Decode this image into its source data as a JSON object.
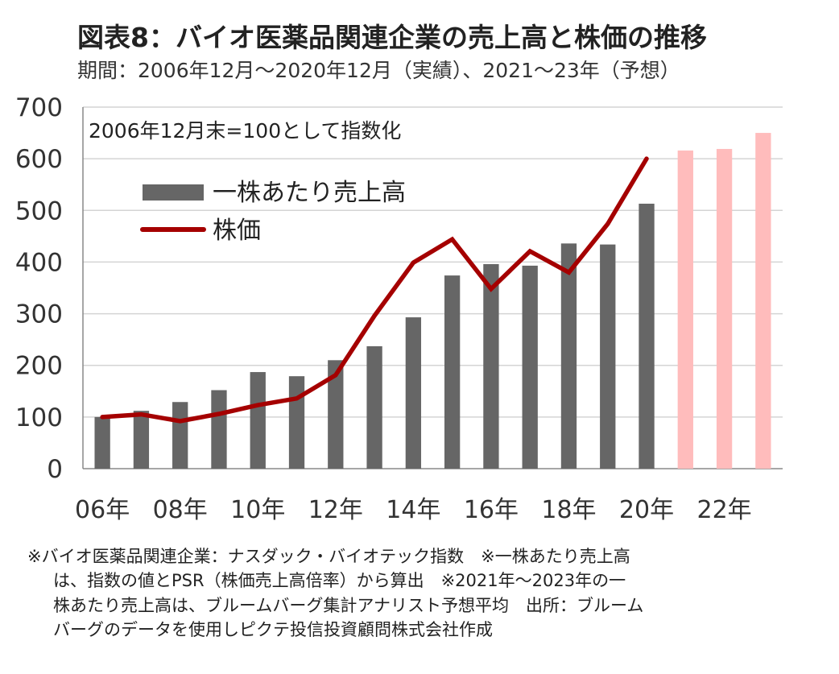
{
  "header": {
    "title": "図表8：バイオ医薬品関連企業の売上高と株価の推移",
    "subtitle": "期間：2006年12月～2020年12月（実績）、2021～23年（予想）"
  },
  "chart_data": {
    "type": "bar",
    "annotation": "2006年12月末=100として指数化",
    "x": [
      2006,
      2007,
      2008,
      2009,
      2010,
      2011,
      2012,
      2013,
      2014,
      2015,
      2016,
      2017,
      2018,
      2019,
      2020,
      2021,
      2022,
      2023
    ],
    "x_tick_labels": [
      {
        "year": 2006,
        "label": "06年"
      },
      {
        "year": 2008,
        "label": "08年"
      },
      {
        "year": 2010,
        "label": "10年"
      },
      {
        "year": 2012,
        "label": "12年"
      },
      {
        "year": 2014,
        "label": "14年"
      },
      {
        "year": 2016,
        "label": "16年"
      },
      {
        "year": 2018,
        "label": "18年"
      },
      {
        "year": 2020,
        "label": "20年"
      },
      {
        "year": 2022,
        "label": "22年"
      }
    ],
    "ylim": [
      0,
      700
    ],
    "yticks": [
      0,
      100,
      200,
      300,
      400,
      500,
      600,
      700
    ],
    "grid": true,
    "legend_position": "top-left",
    "series": [
      {
        "name": "一株あたり売上高",
        "type": "bar",
        "color": "#666666",
        "forecast_color": "#FFBCBC",
        "forecast_from": 2021,
        "values": [
          100,
          112,
          129,
          152,
          187,
          179,
          210,
          237,
          293,
          374,
          396,
          393,
          436,
          434,
          513,
          616,
          619,
          650
        ]
      },
      {
        "name": "株価",
        "type": "line",
        "color": "#A50000",
        "values": [
          100,
          105,
          92,
          106,
          123,
          136,
          181,
          296,
          399,
          444,
          348,
          421,
          380,
          474,
          600,
          null,
          null,
          null
        ]
      }
    ]
  },
  "notes": [
    "※バイオ医薬品関連企業：ナスダック・バイオテック指数　※一株あたり売上高",
    "は、指数の値とPSR（株価売上高倍率）から算出　※2021年～2023年の一",
    "株あたり売上高は、ブルームバーグ集計アナリスト予想平均　出所：ブルーム",
    "バーグのデータを使用しピクテ投信投資顧問株式会社作成"
  ]
}
